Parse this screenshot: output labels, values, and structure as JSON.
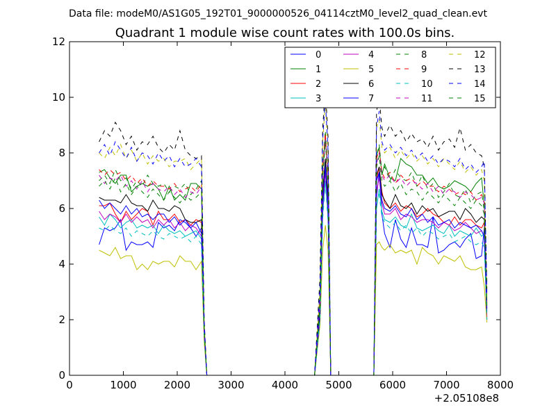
{
  "figure": {
    "supertitle": "Data file: modeM0/AS1G05_192T01_9000000526_04114cztM0_level2_quad_clean.evt"
  },
  "chart_data": {
    "type": "line",
    "title": "Quadrant 1 module wise count rates with 100.0s bins.",
    "xlabel": "",
    "ylabel": "",
    "xlim": [
      0,
      8000
    ],
    "ylim": [
      0,
      12
    ],
    "x_offset_label": "+2.05108e8",
    "x_ticks": [
      0,
      1000,
      2000,
      3000,
      4000,
      5000,
      6000,
      7000,
      8000
    ],
    "y_ticks": [
      0,
      2,
      4,
      6,
      8,
      10,
      12
    ],
    "grid": false,
    "legend_placement": "top-right",
    "legend_columns": 4,
    "x": [
      550,
      650,
      750,
      850,
      950,
      1050,
      1150,
      1250,
      1350,
      1450,
      1550,
      1650,
      1750,
      1850,
      1950,
      2050,
      2150,
      2250,
      2350,
      2450,
      2500,
      2550,
      2600,
      4550,
      4650,
      4700,
      4750,
      4800,
      4850,
      4950,
      5650,
      5700,
      5750,
      5800,
      5850,
      5950,
      6050,
      6150,
      6250,
      6350,
      6450,
      6550,
      6650,
      6750,
      6850,
      6950,
      7050,
      7150,
      7250,
      7350,
      7450,
      7550,
      7650,
      7700,
      7750
    ],
    "series": [
      {
        "name": "0",
        "color": "#0000ff",
        "dash": "solid",
        "values": [
          4.7,
          5.3,
          5.2,
          5.3,
          5.6,
          4.5,
          4.8,
          4.7,
          4.7,
          4.8,
          4.6,
          5.5,
          5.3,
          5.4,
          5.2,
          5.6,
          5.5,
          5.3,
          5.0,
          5.3,
          1.5,
          0,
          0,
          0,
          2.0,
          5.9,
          7.6,
          6.0,
          0,
          0,
          0,
          6.4,
          7.3,
          5.8,
          5.1,
          4.6,
          5.6,
          4.9,
          4.6,
          5.3,
          4.7,
          4.7,
          4.6,
          5.7,
          4.4,
          4.5,
          4.7,
          4.8,
          4.6,
          4.9,
          5.1,
          4.2,
          4.3,
          5.3,
          2.0
        ]
      },
      {
        "name": "1",
        "color": "#008000",
        "dash": "solid",
        "values": [
          7.3,
          7.4,
          7.1,
          6.9,
          7.2,
          7.2,
          6.6,
          6.8,
          6.9,
          6.8,
          6.9,
          6.7,
          6.3,
          6.8,
          6.3,
          6.5,
          6.3,
          6.9,
          6.9,
          6.7,
          1.6,
          0,
          0,
          0,
          2.8,
          7.4,
          8.6,
          7.0,
          0,
          0,
          0,
          7.9,
          8.2,
          7.2,
          7.6,
          7.1,
          7.0,
          7.8,
          7.6,
          7.5,
          7.2,
          7.2,
          6.9,
          7.1,
          6.8,
          6.7,
          6.8,
          7.0,
          6.9,
          6.8,
          6.6,
          6.9,
          7.1,
          6.1,
          2.5
        ]
      },
      {
        "name": "2",
        "color": "#ff0000",
        "dash": "solid",
        "values": [
          6.1,
          6.1,
          6.2,
          5.8,
          5.5,
          5.9,
          5.6,
          5.8,
          6.0,
          5.9,
          5.4,
          5.9,
          5.6,
          5.6,
          5.8,
          5.5,
          5.6,
          5.4,
          5.6,
          5.5,
          1.5,
          0,
          0,
          0,
          2.3,
          6.3,
          7.5,
          6.2,
          0,
          0,
          0,
          7.0,
          7.5,
          6.6,
          6.2,
          6.0,
          6.2,
          5.9,
          6.1,
          6.0,
          5.7,
          5.8,
          6.0,
          5.8,
          5.7,
          5.5,
          5.4,
          5.7,
          5.4,
          5.6,
          5.6,
          5.4,
          5.3,
          5.5,
          2.1
        ]
      },
      {
        "name": "3",
        "color": "#00bfbf",
        "dash": "solid",
        "values": [
          5.7,
          5.4,
          5.8,
          5.6,
          5.3,
          5.5,
          5.6,
          5.3,
          5.4,
          5.3,
          5.4,
          5.1,
          5.4,
          5.2,
          5.1,
          5.2,
          5.0,
          5.1,
          5.2,
          4.9,
          1.4,
          0,
          0,
          0,
          2.1,
          5.8,
          7.0,
          5.7,
          0,
          0,
          0,
          6.0,
          6.7,
          5.9,
          5.6,
          5.5,
          5.7,
          5.4,
          5.3,
          5.8,
          5.3,
          5.2,
          5.3,
          5.4,
          5.2,
          5.1,
          5.4,
          5.0,
          5.2,
          5.1,
          5.0,
          5.3,
          5.0,
          5.1,
          2.0
        ]
      },
      {
        "name": "4",
        "color": "#bf00bf",
        "dash": "solid",
        "values": [
          5.9,
          5.6,
          5.8,
          5.7,
          5.5,
          5.8,
          5.5,
          5.7,
          5.5,
          5.6,
          5.3,
          5.6,
          5.4,
          5.6,
          5.3,
          5.5,
          5.2,
          5.4,
          5.3,
          5.0,
          1.4,
          0,
          0,
          0,
          2.2,
          6.0,
          7.3,
          5.9,
          0,
          0,
          0,
          6.6,
          7.1,
          6.2,
          5.8,
          5.8,
          6.0,
          5.6,
          5.8,
          5.7,
          5.5,
          5.6,
          5.6,
          5.5,
          5.3,
          5.5,
          5.4,
          5.2,
          5.3,
          5.5,
          5.3,
          5.1,
          5.2,
          5.0,
          2.0
        ]
      },
      {
        "name": "5",
        "color": "#bfbf00",
        "dash": "solid",
        "values": [
          4.5,
          4.4,
          4.3,
          4.6,
          4.2,
          4.3,
          4.3,
          3.8,
          4.0,
          3.8,
          4.1,
          4.0,
          4.1,
          4.1,
          3.9,
          4.3,
          4.1,
          4.1,
          3.8,
          4.1,
          1.2,
          0,
          0,
          0,
          1.8,
          4.5,
          5.4,
          4.5,
          0,
          0,
          0,
          4.7,
          4.8,
          4.6,
          4.5,
          4.7,
          4.4,
          4.5,
          4.4,
          4.5,
          4.0,
          4.6,
          4.4,
          4.3,
          4.0,
          4.3,
          4.2,
          4.1,
          4.3,
          3.9,
          3.8,
          3.8,
          3.9,
          3.2,
          1.9
        ]
      },
      {
        "name": "6",
        "color": "#000000",
        "dash": "solid",
        "values": [
          6.4,
          6.3,
          6.3,
          6.3,
          6.2,
          6.5,
          6.2,
          6.1,
          6.1,
          5.9,
          6.3,
          6.0,
          6.0,
          5.9,
          6.1,
          6.0,
          5.6,
          5.5,
          5.5,
          5.6,
          1.6,
          0,
          0,
          0,
          2.3,
          6.6,
          7.8,
          6.4,
          0,
          0,
          0,
          7.2,
          7.5,
          6.5,
          6.3,
          6.0,
          6.5,
          6.1,
          6.0,
          6.2,
          5.8,
          6.1,
          5.9,
          6.0,
          5.7,
          5.8,
          5.9,
          5.9,
          5.6,
          6.0,
          5.8,
          5.5,
          5.7,
          5.6,
          2.4
        ]
      },
      {
        "name": "7",
        "color": "#0000ff",
        "dash": "solid",
        "values": [
          6.3,
          6.0,
          6.2,
          6.0,
          5.8,
          6.1,
          5.8,
          6.0,
          5.7,
          5.8,
          5.6,
          5.8,
          5.8,
          5.5,
          5.7,
          5.4,
          5.6,
          5.3,
          5.5,
          5.1,
          1.5,
          0,
          0,
          0,
          2.1,
          6.2,
          7.5,
          6.1,
          0,
          0,
          0,
          7.0,
          7.3,
          6.3,
          6.0,
          5.9,
          6.1,
          5.8,
          5.7,
          6.0,
          5.6,
          5.8,
          5.5,
          5.7,
          5.4,
          5.5,
          5.6,
          5.3,
          5.5,
          5.4,
          5.3,
          5.4,
          5.2,
          5.0,
          2.3
        ]
      },
      {
        "name": "8",
        "color": "#008000",
        "dash": "dashed",
        "values": [
          7.0,
          7.2,
          6.9,
          7.4,
          7.0,
          7.1,
          6.7,
          7.0,
          6.8,
          7.2,
          6.9,
          6.8,
          6.9,
          6.6,
          6.8,
          6.7,
          6.9,
          6.5,
          6.7,
          7.0,
          1.7,
          0,
          0,
          0,
          2.8,
          7.5,
          8.8,
          7.2,
          0,
          0,
          0,
          7.9,
          8.3,
          7.3,
          7.5,
          7.0,
          7.4,
          7.1,
          7.0,
          7.3,
          6.8,
          7.2,
          6.7,
          6.9,
          6.4,
          6.6,
          6.9,
          6.5,
          6.4,
          6.7,
          6.2,
          6.5,
          6.6,
          5.9,
          2.6
        ]
      },
      {
        "name": "9",
        "color": "#ff0000",
        "dash": "dashed",
        "values": [
          7.4,
          7.2,
          7.4,
          7.2,
          7.3,
          7.0,
          7.2,
          6.9,
          7.1,
          6.8,
          7.0,
          6.8,
          6.8,
          6.7,
          6.9,
          6.6,
          6.7,
          6.8,
          6.6,
          6.9,
          1.7,
          0,
          0,
          0,
          2.7,
          7.4,
          8.7,
          7.1,
          0,
          0,
          0,
          7.8,
          8.1,
          7.3,
          7.1,
          7.3,
          6.9,
          7.2,
          7.0,
          7.1,
          6.8,
          7.0,
          6.8,
          6.8,
          6.6,
          6.8,
          6.7,
          6.5,
          6.6,
          6.5,
          6.6,
          6.3,
          6.5,
          6.2,
          2.6
        ]
      },
      {
        "name": "10",
        "color": "#00bfbf",
        "dash": "dashed",
        "values": [
          5.3,
          5.2,
          5.4,
          5.2,
          5.1,
          5.3,
          5.0,
          5.2,
          5.1,
          5.0,
          5.2,
          5.0,
          4.9,
          5.1,
          5.0,
          4.9,
          5.0,
          4.8,
          5.0,
          4.7,
          1.4,
          0,
          0,
          0,
          2.0,
          5.6,
          6.9,
          5.5,
          0,
          0,
          0,
          6.3,
          6.5,
          5.7,
          5.5,
          5.3,
          5.5,
          5.2,
          5.4,
          5.1,
          5.3,
          5.0,
          5.2,
          5.1,
          4.9,
          5.0,
          5.1,
          4.8,
          4.9,
          5.0,
          4.8,
          4.7,
          4.8,
          4.6,
          2.0
        ]
      },
      {
        "name": "11",
        "color": "#bf00bf",
        "dash": "dashed",
        "values": [
          7.2,
          6.9,
          7.1,
          7.0,
          7.2,
          6.8,
          7.0,
          6.7,
          7.0,
          6.6,
          6.9,
          6.7,
          6.6,
          6.8,
          6.5,
          6.7,
          6.4,
          6.6,
          6.5,
          6.8,
          1.6,
          0,
          0,
          0,
          2.6,
          7.2,
          8.5,
          7.0,
          0,
          0,
          0,
          7.6,
          8.0,
          7.2,
          7.0,
          7.2,
          6.9,
          7.1,
          6.8,
          7.0,
          6.9,
          6.7,
          6.9,
          6.6,
          6.8,
          6.5,
          6.7,
          6.6,
          6.4,
          6.6,
          6.5,
          6.3,
          6.4,
          6.2,
          2.5
        ]
      },
      {
        "name": "12",
        "color": "#bfbf00",
        "dash": "dashed",
        "values": [
          8.0,
          7.8,
          8.2,
          7.9,
          8.3,
          7.8,
          8.1,
          7.7,
          8.0,
          7.6,
          7.9,
          7.7,
          7.8,
          7.5,
          7.7,
          7.7,
          7.8,
          7.4,
          7.6,
          7.8,
          1.9,
          0,
          0,
          0,
          3.0,
          8.4,
          9.8,
          8.0,
          0,
          0,
          0,
          8.9,
          9.2,
          8.2,
          8.0,
          8.2,
          7.8,
          8.1,
          7.8,
          8.0,
          7.7,
          7.9,
          7.6,
          7.8,
          7.5,
          7.8,
          7.6,
          7.4,
          7.7,
          7.3,
          7.5,
          7.2,
          7.4,
          7.0,
          2.8
        ]
      },
      {
        "name": "13",
        "color": "#000000",
        "dash": "dashed",
        "values": [
          8.4,
          8.8,
          8.6,
          9.1,
          8.8,
          8.3,
          8.6,
          8.1,
          8.4,
          8.3,
          8.6,
          8.2,
          8.0,
          8.3,
          8.1,
          8.8,
          8.1,
          7.9,
          7.8,
          7.9,
          2.0,
          0,
          0,
          0,
          3.5,
          8.9,
          10.3,
          8.6,
          0,
          0,
          0,
          9.5,
          10.0,
          8.9,
          8.6,
          9.0,
          8.6,
          8.8,
          8.4,
          8.7,
          8.4,
          8.5,
          8.2,
          8.6,
          8.1,
          8.4,
          8.5,
          8.2,
          8.9,
          8.1,
          8.3,
          8.0,
          7.9,
          7.5,
          3.0
        ]
      },
      {
        "name": "14",
        "color": "#0000ff",
        "dash": "dashed",
        "values": [
          8.0,
          8.3,
          7.9,
          8.4,
          8.1,
          7.8,
          8.2,
          7.7,
          8.0,
          7.9,
          7.6,
          8.0,
          7.7,
          7.9,
          7.5,
          7.8,
          7.5,
          7.6,
          7.8,
          7.5,
          1.9,
          0,
          0,
          0,
          3.1,
          8.5,
          9.9,
          8.1,
          0,
          0,
          0,
          8.9,
          9.5,
          8.4,
          8.1,
          8.3,
          8.0,
          8.2,
          7.9,
          8.1,
          7.8,
          8.0,
          7.7,
          7.9,
          7.6,
          7.8,
          7.7,
          7.5,
          7.8,
          7.4,
          7.6,
          7.3,
          7.5,
          7.7,
          2.9
        ]
      },
      {
        "name": "15",
        "color": "#008000",
        "dash": "dashed",
        "values": [
          6.8,
          7.0,
          6.7,
          7.1,
          6.6,
          6.9,
          6.5,
          6.8,
          6.6,
          6.4,
          6.7,
          6.5,
          6.3,
          6.6,
          6.4,
          6.2,
          6.5,
          6.3,
          6.4,
          6.6,
          1.6,
          0,
          0,
          0,
          2.5,
          7.1,
          8.4,
          6.9,
          0,
          0,
          0,
          7.5,
          7.9,
          7.0,
          6.8,
          7.0,
          6.6,
          6.9,
          6.5,
          6.7,
          6.6,
          6.3,
          6.6,
          6.4,
          6.2,
          6.5,
          6.3,
          6.1,
          6.4,
          6.2,
          6.0,
          6.3,
          6.1,
          5.8,
          2.4
        ]
      }
    ]
  }
}
